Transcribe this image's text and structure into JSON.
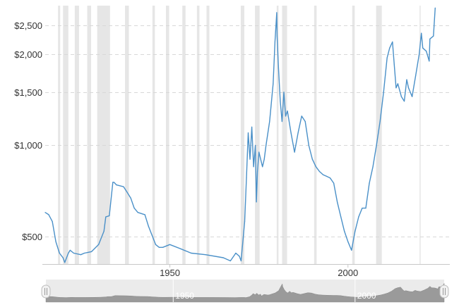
{
  "chart_data": {
    "type": "line",
    "title": "",
    "xlabel": "",
    "ylabel": "",
    "y_scale": "log",
    "ylim": [
      405,
      2900
    ],
    "xlim": [
      1915,
      2028
    ],
    "y_ticks": [
      {
        "value": 2500,
        "label": "$2,500"
      },
      {
        "value": 2000,
        "label": "$2,000"
      },
      {
        "value": 1500,
        "label": "$1,500"
      },
      {
        "value": 1000,
        "label": "$1,000"
      },
      {
        "value": 500,
        "label": "$500"
      }
    ],
    "x_ticks": [
      {
        "value": 1950,
        "label": "1950"
      },
      {
        "value": 2000,
        "label": "2000"
      }
    ],
    "grid": "horizontal dashed",
    "legend": "none",
    "series_color": "#4a90c8",
    "recession_shading_color": "#e6e6e6",
    "recessions": [
      [
        1918.6,
        1919.2
      ],
      [
        1920.0,
        1921.5
      ],
      [
        1923.3,
        1924.5
      ],
      [
        1926.8,
        1927.9
      ],
      [
        1929.6,
        1933.2
      ],
      [
        1937.4,
        1938.5
      ],
      [
        1945.1,
        1945.8
      ],
      [
        1948.9,
        1949.8
      ],
      [
        1953.5,
        1954.4
      ],
      [
        1957.6,
        1958.3
      ],
      [
        1960.3,
        1961.1
      ],
      [
        1969.9,
        1970.9
      ],
      [
        1973.9,
        1975.2
      ],
      [
        1980.0,
        1980.5
      ],
      [
        1981.5,
        1982.9
      ],
      [
        1990.5,
        1991.2
      ],
      [
        2001.2,
        2001.9
      ],
      [
        2007.9,
        2009.5
      ],
      [
        2020.1,
        2020.4
      ]
    ],
    "series": [
      {
        "x": [
          1915.0,
          1916.0,
          1917.0,
          1918.0,
          1919.0,
          1920.0,
          1920.5,
          1921.5,
          1922.0,
          1923.0,
          1925.0,
          1926.0,
          1928.0,
          1930.0,
          1931.5,
          1932.0,
          1933.0,
          1934.0,
          1934.3,
          1935.0,
          1937.0,
          1938.0,
          1939.0,
          1940.0,
          1941.0,
          1943.0,
          1944.0,
          1946.0,
          1947.0,
          1948.0,
          1950.0,
          1953.0,
          1956.0,
          1960.0,
          1965.0,
          1967.0,
          1968.5,
          1969.5,
          1970.0,
          1971.0,
          1971.5,
          1972.0,
          1972.5,
          1973.0,
          1973.5,
          1974.0,
          1974.3,
          1974.6,
          1975.0,
          1976.0,
          1976.5,
          1977.0,
          1978.0,
          1979.0,
          1979.5,
          1980.0,
          1980.1,
          1980.5,
          1981.0,
          1981.5,
          1982.0,
          1982.5,
          1983.0,
          1984.0,
          1985.0,
          1986.0,
          1987.0,
          1988.0,
          1989.0,
          1990.0,
          1991.0,
          1992.0,
          1993.0,
          1994.0,
          1995.0,
          1996.0,
          1997.0,
          1998.0,
          1999.0,
          2000.0,
          2001.0,
          2002.0,
          2003.0,
          2004.0,
          2005.0,
          2006.0,
          2007.0,
          2008.0,
          2009.0,
          2010.0,
          2011.0,
          2011.7,
          2012.5,
          2013.0,
          2013.5,
          2014.0,
          2015.0,
          2015.8,
          2016.5,
          2017.0,
          2018.0,
          2019.0,
          2020.0,
          2020.6,
          2021.0,
          2022.0,
          2022.8,
          2023.0,
          2024.0,
          2024.5
        ],
        "values": [
          600,
          590,
          560,
          480,
          440,
          425,
          410,
          440,
          450,
          440,
          435,
          440,
          445,
          470,
          520,
          580,
          585,
          755,
          755,
          740,
          730,
          700,
          670,
          620,
          600,
          590,
          540,
          470,
          460,
          460,
          470,
          455,
          440,
          435,
          425,
          415,
          440,
          430,
          415,
          560,
          780,
          1100,
          900,
          1150,
          850,
          1000,
          650,
          820,
          950,
          850,
          900,
          1000,
          1200,
          1600,
          2200,
          2750,
          2300,
          1800,
          1400,
          1200,
          1500,
          1250,
          1300,
          1100,
          950,
          1100,
          1250,
          1200,
          1000,
          900,
          850,
          820,
          800,
          790,
          780,
          750,
          650,
          580,
          520,
          480,
          450,
          520,
          580,
          620,
          620,
          750,
          850,
          1000,
          1200,
          1500,
          1950,
          2100,
          2200,
          1850,
          1550,
          1600,
          1450,
          1400,
          1650,
          1550,
          1450,
          1700,
          2000,
          2350,
          2100,
          2050,
          1900,
          2250,
          2300,
          2850
        ]
      }
    ]
  },
  "navigator": {
    "x_ticks": [
      {
        "value": 1950,
        "label": "1950"
      },
      {
        "value": 2000,
        "label": "2000"
      }
    ]
  }
}
